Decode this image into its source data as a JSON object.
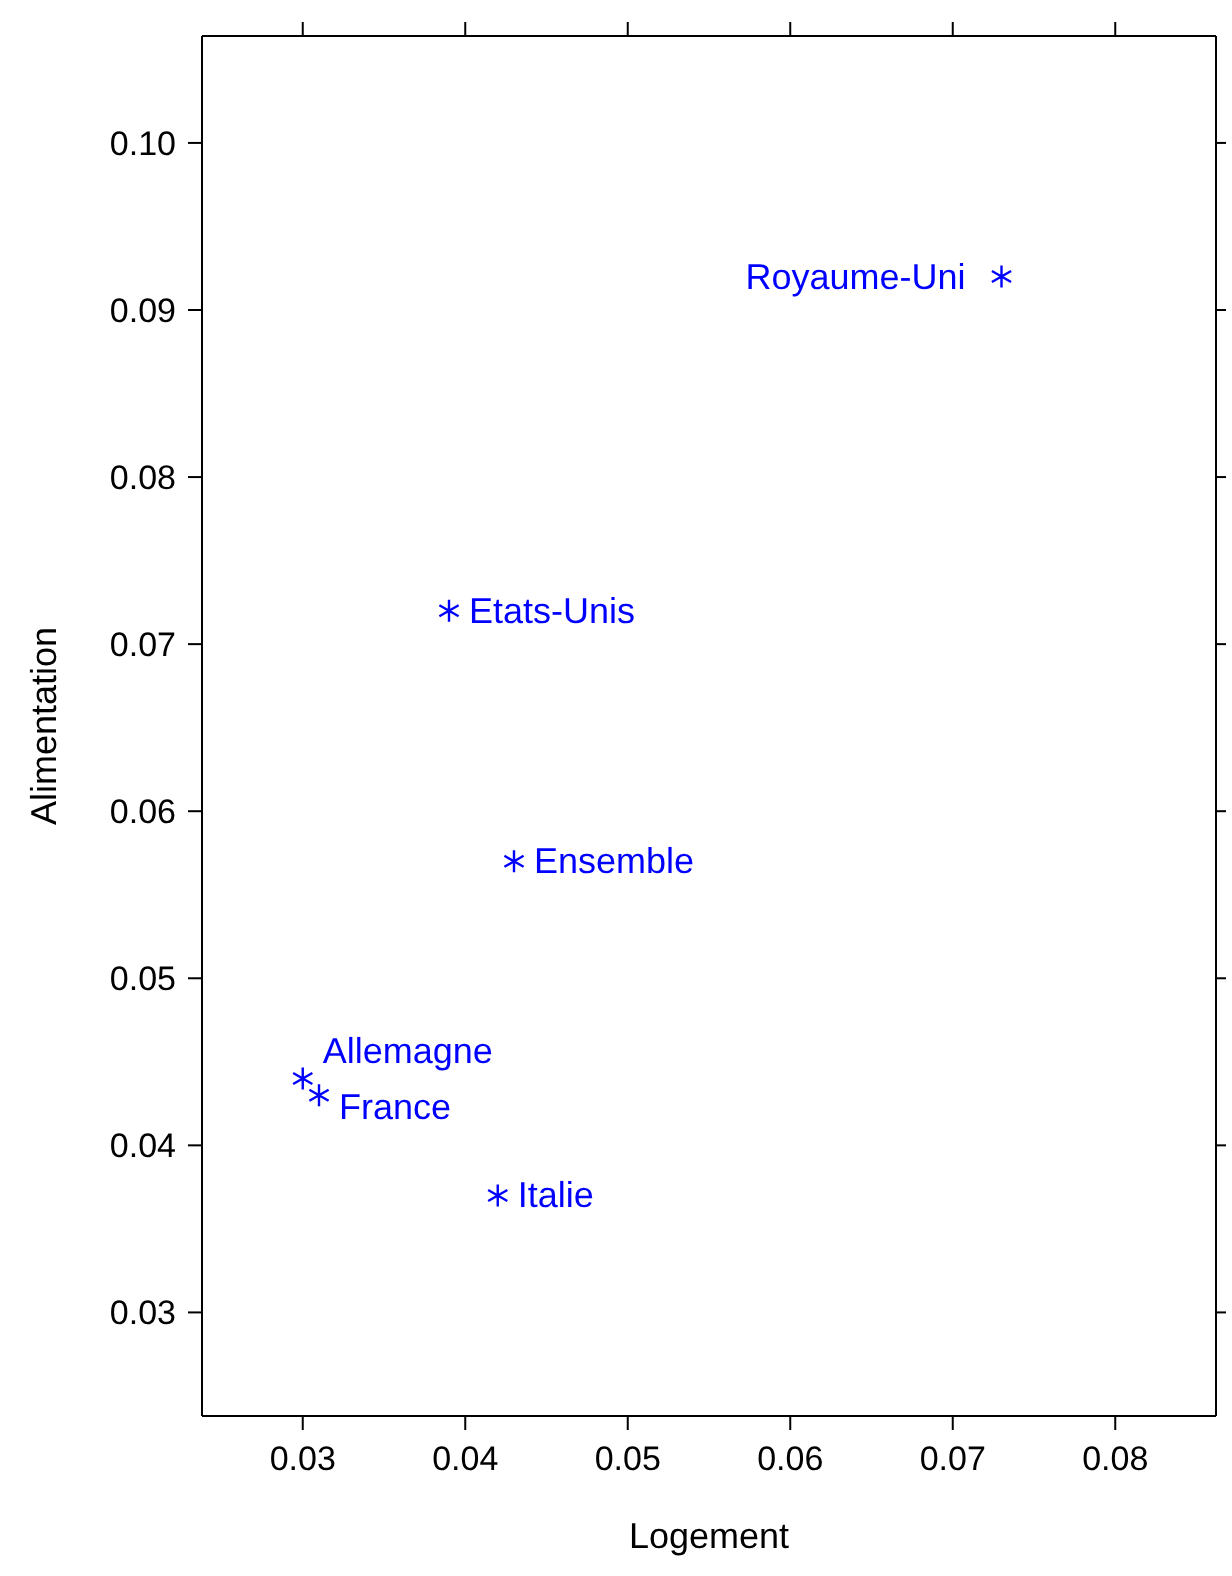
{
  "chart_data": {
    "type": "scatter",
    "xlabel": "Logement",
    "ylabel": "Alimentation",
    "xlim": [
      0.0238,
      0.0862
    ],
    "xticks": [
      0.03,
      0.04,
      0.05,
      0.06,
      0.07,
      0.08
    ],
    "ylim": [
      0.0238,
      0.1064
    ],
    "yticks": [
      0.03,
      0.04,
      0.05,
      0.06,
      0.07,
      0.08,
      0.09,
      {
        "value": 0.1,
        "label": "0.10"
      }
    ],
    "marker": "cross",
    "grid": false,
    "legend": false,
    "series": [
      {
        "name": "Royaume-Uni",
        "color": "#0000ff",
        "x": [
          0.073
        ],
        "values": [
          0.092
        ]
      },
      {
        "name": "Etats-Unis",
        "color": "#0000ff",
        "x": [
          0.039
        ],
        "values": [
          0.072
        ]
      },
      {
        "name": "Ensemble",
        "color": "#0000ff",
        "x": [
          0.043
        ],
        "values": [
          0.057
        ]
      },
      {
        "name": "Allemagne",
        "color": "#0000ff",
        "x": [
          0.03
        ],
        "values": [
          0.044
        ]
      },
      {
        "name": "France",
        "color": "#0000ff",
        "x": [
          0.031
        ],
        "values": [
          0.043
        ]
      },
      {
        "name": "Italie",
        "color": "#0000ff",
        "x": [
          0.042
        ],
        "values": [
          0.037
        ]
      }
    ]
  }
}
